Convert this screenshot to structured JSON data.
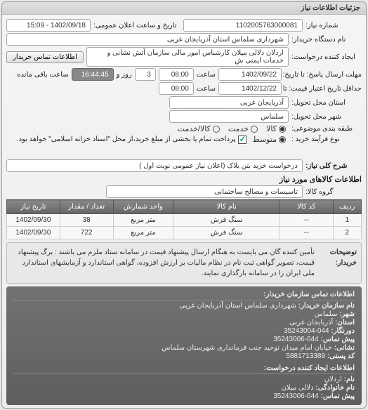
{
  "panel_title": "جزئیات اطلاعات نیاز",
  "reqnum": {
    "label": "شماره نیاز:",
    "value": "1102005763000081"
  },
  "announce_dt": {
    "label": "تاریخ و ساعت اعلان عمومی:",
    "value": "1402/09/18 - 15:09"
  },
  "buyer_device": {
    "label": "نام دستگاه خریدار:",
    "value": "شهرداری سلماس استان آذربایجان غربی"
  },
  "creator": {
    "label": "ایجاد کننده درخواست:",
    "value": "اردلان دلالی میلان کارشناس امور مالی سازمان آتش نشانی و خدمات ایمنی ش"
  },
  "contact_btn": "اطلاعات تماس خریدار",
  "resp_deadline": {
    "label": "مهلت ارسال پاسخ: تا تاریخ:",
    "date": "1402/09/22",
    "time_label": "ساعت",
    "time": "08:00",
    "days": "3",
    "and_label": "و",
    "day_label": "روز و",
    "remain": "16:44:45",
    "remain_label": "ساعت باقی مانده"
  },
  "credit_deadline": {
    "label": "حداقل تاریخ اعتبار قیمت: تا تاریخ:",
    "date": "1402/12/22",
    "time_label": "ساعت",
    "time": "08:00"
  },
  "deliver_prov": {
    "label": "استان محل تحویل:",
    "value": "آذربایجان غربی"
  },
  "deliver_city": {
    "label": "شهر محل تحویل:",
    "value": "سلماس"
  },
  "budget_type": {
    "label": "طبقه بندی موضوعی:",
    "options": [
      "کالا",
      "خدمت",
      "کالا/خدمت"
    ],
    "selected": 0
  },
  "buy_type": {
    "label": "نوع فرآیند خرید :",
    "options": [
      "متوسط"
    ],
    "selected": 0,
    "note": "پرداخت تمام یا بخشی از مبلغ خرید،از محل \"اسناد خزانه اسلامی\" خواهد بود.",
    "checked": true
  },
  "need_desc": {
    "label": "شرح کلی نیاز:",
    "value": "درخواست خرید بتن بلاک (اعلان نیاز عمومی نوبت اول )"
  },
  "goods_section": "اطلاعات کالاهای مورد نیاز",
  "goods_group": {
    "label": "گروه کالا:",
    "value": "تاسیسات و مصالح ساختمانی"
  },
  "table": {
    "columns": [
      "ردیف",
      "کد کالا",
      "نام کالا",
      "واحد شمارش",
      "تعداد / مقدار",
      "تاریخ نیاز"
    ],
    "rows": [
      [
        "1",
        "--",
        "سنگ فرش",
        "متر مربع",
        "38",
        "1402/09/30"
      ],
      [
        "2",
        "--",
        "سنگ فرش",
        "متر مربع",
        "722",
        "1402/09/30"
      ]
    ],
    "col_widths": [
      "8%",
      "15%",
      "30%",
      "17%",
      "15%",
      "15%"
    ]
  },
  "buyer_note": {
    "label": "توضیحات خریدار:",
    "text": "تأمین کننده گان می بایست به هنگام ارسال پیشنهاد قیمت در سامانه ستاد ملزم می باشند : برگ پیشنهاد قیمت، تصویر گواهی ثبت نام در نظام مالیات بر ارزش افزوده، گواهی استاندارد و آزمایشهای استاندارد ملی ایران را در سامانه بارگذاری نمایند."
  },
  "org_contact": {
    "title": "اطلاعات تماس سازمان خریدار:",
    "lines": [
      {
        "k": "نام سازمان خریدار:",
        "v": "شهرداری سلماس استان آذربایجان غربی"
      },
      {
        "k": "شهر:",
        "v": "سلماس"
      },
      {
        "k": "استان:",
        "v": "آذربایجان غربی"
      },
      {
        "k": "دورنگار:",
        "v": "044-35243004"
      },
      {
        "k": "پیش تماس:",
        "v": "044-35243006"
      },
      {
        "k": "نشانی:",
        "v": "خیابان امام میدان توحید جنب فرمانداری شهرستان سلماس"
      },
      {
        "k": "کد پستی:",
        "v": "5881713389"
      }
    ]
  },
  "req_contact": {
    "title": "اطلاعات ایجاد کننده درخواست:",
    "lines": [
      {
        "k": "نام:",
        "v": "اردلان"
      },
      {
        "k": "نام خانوادگی:",
        "v": "دلالی میلان"
      },
      {
        "k": "پیش تماس:",
        "v": "044-35243006"
      }
    ]
  }
}
